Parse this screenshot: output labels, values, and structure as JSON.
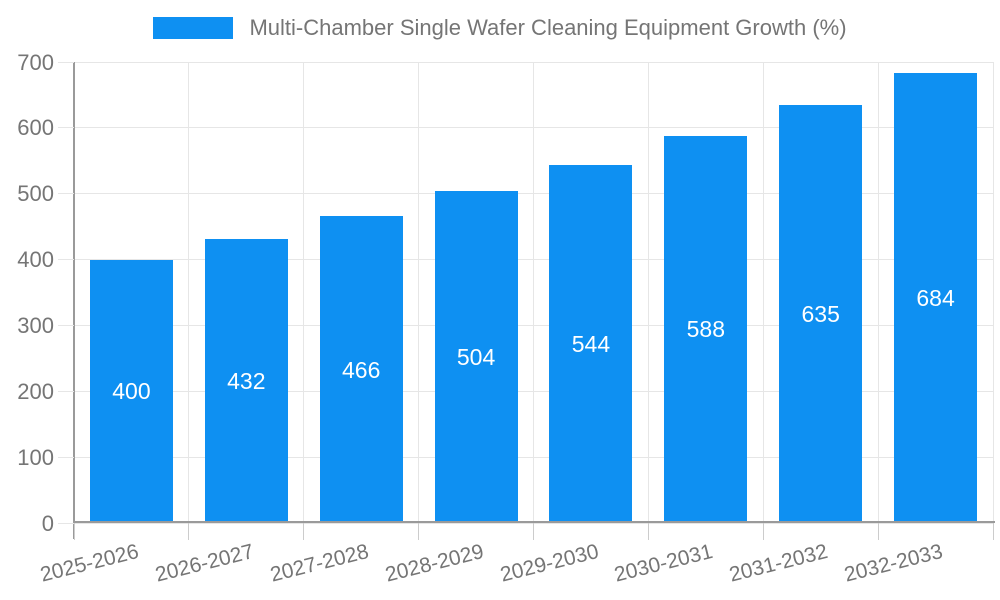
{
  "chart_data": {
    "type": "bar",
    "title": "Multi-Chamber Single Wafer Cleaning Equipment Growth (%)",
    "categories": [
      "2025-2026",
      "2026-2027",
      "2027-2028",
      "2028-2029",
      "2029-2030",
      "2030-2031",
      "2031-2032",
      "2032-2033"
    ],
    "values": [
      400,
      432,
      466,
      504,
      544,
      588,
      635,
      684
    ],
    "xlabel": "",
    "ylabel": "",
    "ylim": [
      0,
      700
    ],
    "ytick_step": 100,
    "grid": true,
    "legend_position": "top",
    "value_labels": "inside-center"
  },
  "colors": {
    "bar": "#0e90f2",
    "grid": "#e6e6e6",
    "axis": "#9a9a9a",
    "tick": "#cccccc",
    "text": "#757575",
    "value_label": "#ffffff",
    "background": "#ffffff"
  }
}
